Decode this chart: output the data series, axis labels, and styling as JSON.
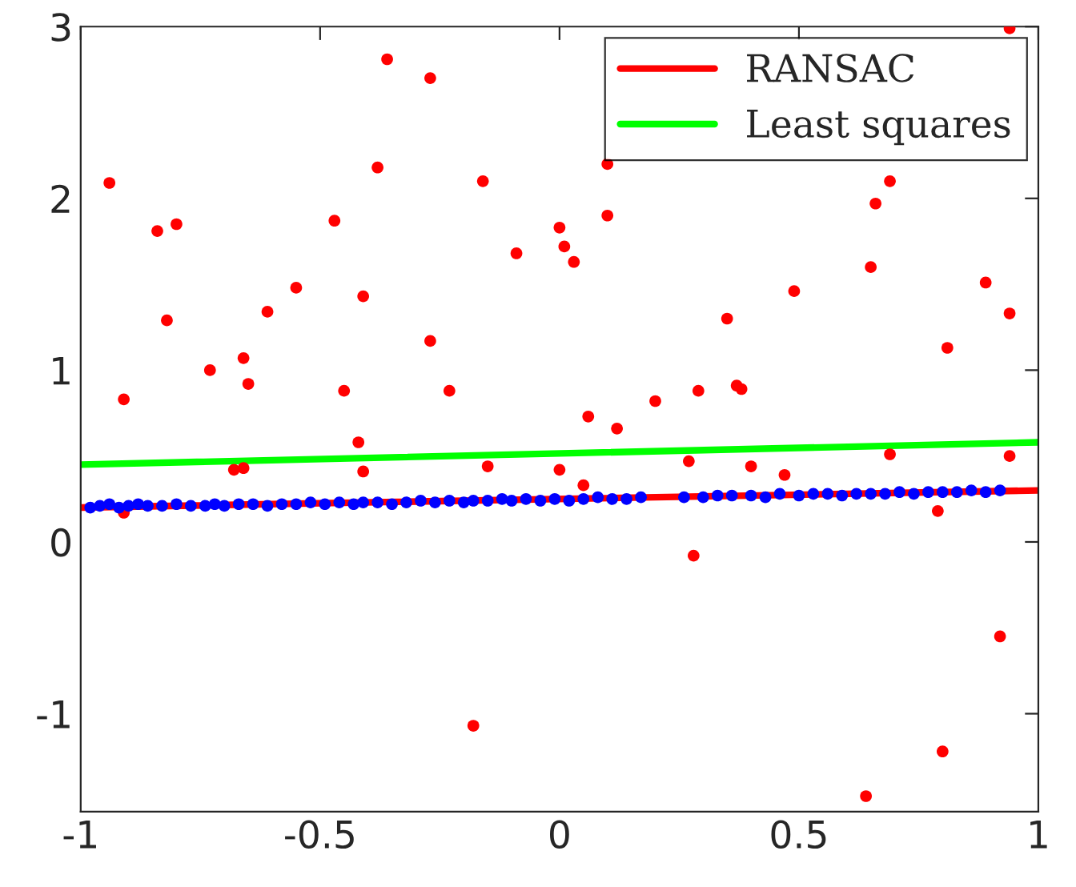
{
  "chart_data": {
    "type": "scatter",
    "xlim": [
      -1,
      1
    ],
    "ylim": [
      -1.57,
      3
    ],
    "xticks": [
      -1,
      -0.5,
      0,
      0.5,
      1
    ],
    "yticks": [
      -1,
      0,
      1,
      2,
      3
    ],
    "grid": false,
    "legend": "top right",
    "series": [
      {
        "marker": "circle",
        "color": "#ff0000",
        "x": [
          -0.94,
          -0.91,
          -0.84,
          -0.8,
          -0.82,
          -0.73,
          -0.66,
          -0.65,
          -0.61,
          -0.55,
          -0.47,
          -0.45,
          -0.41,
          -0.38,
          -0.36,
          -0.27,
          -0.27,
          -0.23,
          -0.16,
          -0.09,
          -0.42,
          -0.41,
          -0.68,
          -0.66,
          -0.15,
          0.0,
          -0.91,
          -0.18,
          0.0,
          0.01,
          0.03,
          0.1,
          0.1,
          0.06,
          0.12,
          0.2,
          0.29,
          0.37,
          0.38,
          0.35,
          0.49,
          0.65,
          0.66,
          0.69,
          0.89,
          0.94,
          0.81,
          0.94,
          0.05,
          0.27,
          0.28,
          0.4,
          0.47,
          0.69,
          0.94,
          0.79,
          0.92,
          0.8,
          0.64
        ],
        "values": [
          2.09,
          0.83,
          1.81,
          1.85,
          1.29,
          1.0,
          1.07,
          0.92,
          1.34,
          1.48,
          1.87,
          0.88,
          1.43,
          2.18,
          2.81,
          1.17,
          2.7,
          0.88,
          2.1,
          1.68,
          0.58,
          0.41,
          0.42,
          0.43,
          0.44,
          0.42,
          0.17,
          -1.07,
          1.83,
          1.72,
          1.63,
          2.2,
          1.9,
          0.73,
          0.66,
          0.82,
          0.88,
          0.91,
          0.89,
          1.3,
          1.46,
          1.6,
          1.97,
          2.1,
          1.51,
          1.33,
          1.13,
          2.99,
          0.33,
          0.47,
          -0.08,
          0.44,
          0.39,
          0.51,
          0.5,
          0.18,
          -0.55,
          -1.22,
          -1.48
        ]
      },
      {
        "type": "line",
        "marker": "none",
        "name": "RANSAC",
        "color": "#ff0000",
        "x": [
          -1,
          1
        ],
        "values": [
          0.2,
          0.3
        ]
      },
      {
        "marker": "circle",
        "color": "#0000ff",
        "x": [
          -0.98,
          -0.96,
          -0.94,
          -0.92,
          -0.9,
          -0.88,
          -0.86,
          -0.83,
          -0.8,
          -0.77,
          -0.74,
          -0.72,
          -0.7,
          -0.67,
          -0.64,
          -0.61,
          -0.58,
          -0.55,
          -0.52,
          -0.49,
          -0.46,
          -0.43,
          -0.41,
          -0.38,
          -0.35,
          -0.32,
          -0.29,
          -0.26,
          -0.23,
          -0.2,
          -0.18,
          -0.15,
          -0.12,
          -0.1,
          -0.07,
          -0.04,
          -0.01,
          0.02,
          0.05,
          0.08,
          0.11,
          0.14,
          0.17,
          0.26,
          0.3,
          0.33,
          0.36,
          0.4,
          0.43,
          0.46,
          0.5,
          0.53,
          0.56,
          0.59,
          0.62,
          0.65,
          0.68,
          0.71,
          0.74,
          0.77,
          0.8,
          0.83,
          0.86,
          0.89,
          0.92
        ],
        "values": [
          0.2,
          0.21,
          0.22,
          0.2,
          0.21,
          0.22,
          0.21,
          0.21,
          0.22,
          0.21,
          0.21,
          0.22,
          0.21,
          0.22,
          0.22,
          0.21,
          0.22,
          0.22,
          0.23,
          0.22,
          0.23,
          0.22,
          0.23,
          0.23,
          0.22,
          0.23,
          0.24,
          0.23,
          0.24,
          0.23,
          0.24,
          0.24,
          0.25,
          0.24,
          0.25,
          0.24,
          0.25,
          0.24,
          0.25,
          0.26,
          0.25,
          0.25,
          0.26,
          0.26,
          0.26,
          0.27,
          0.27,
          0.27,
          0.26,
          0.28,
          0.27,
          0.28,
          0.28,
          0.27,
          0.28,
          0.28,
          0.28,
          0.29,
          0.28,
          0.29,
          0.29,
          0.29,
          0.3,
          0.29,
          0.3
        ]
      },
      {
        "type": "line",
        "marker": "none",
        "name": "Least squares",
        "color": "#00ff00",
        "x": [
          -1,
          1
        ],
        "values": [
          0.45,
          0.58
        ]
      }
    ]
  }
}
